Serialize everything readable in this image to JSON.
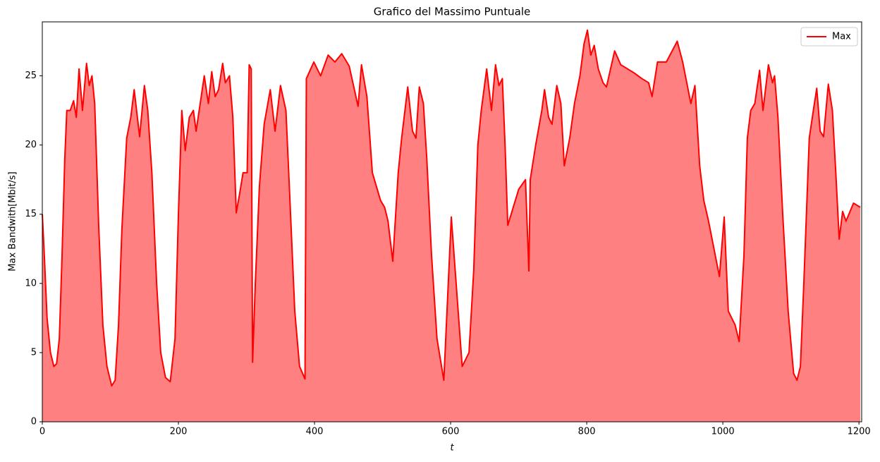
{
  "chart_data": {
    "type": "area",
    "title": "Grafico del Massimo Puntuale",
    "x_label": "t",
    "y_label": "Max Bandwith[Mbit/s]",
    "xlim": [
      0,
      1204
    ],
    "ylim": [
      0,
      28.9
    ],
    "xticks": [
      0,
      200,
      400,
      600,
      800,
      1000,
      1200
    ],
    "yticks": [
      0,
      5,
      10,
      15,
      20,
      25
    ],
    "legend": "upper right",
    "x": [
      0,
      3,
      7,
      12,
      17,
      21,
      25,
      29,
      33,
      36,
      41,
      46,
      50,
      54,
      59,
      65,
      69,
      73,
      77,
      83,
      89,
      95,
      102,
      107,
      112,
      117,
      124,
      130,
      135,
      143,
      150,
      155,
      161,
      168,
      174,
      181,
      188,
      195,
      200,
      205,
      210,
      216,
      222,
      226,
      232,
      238,
      244,
      249,
      254,
      259,
      265,
      269,
      275,
      280,
      285,
      290,
      295,
      301,
      304,
      307,
      309,
      313,
      319,
      326,
      335,
      342,
      350,
      358,
      363,
      371,
      378,
      386,
      388,
      399,
      409,
      420,
      430,
      440,
      451,
      464,
      469,
      477,
      485,
      497,
      503,
      508,
      515,
      523,
      528,
      537,
      544,
      549,
      554,
      560,
      565,
      572,
      580,
      590,
      601,
      617,
      627,
      634,
      640,
      645,
      653,
      660,
      666,
      671,
      676,
      680,
      684,
      692,
      700,
      710,
      715,
      717,
      725,
      734,
      738,
      744,
      749,
      756,
      762,
      767,
      775,
      782,
      790,
      796,
      801,
      806,
      811,
      817,
      824,
      829,
      841,
      850,
      860,
      870,
      881,
      891,
      896,
      904,
      917,
      933,
      941,
      953,
      959,
      966,
      972,
      979,
      987,
      995,
      1002,
      1008,
      1018,
      1024,
      1031,
      1036,
      1041,
      1047,
      1054,
      1059,
      1067,
      1073,
      1076,
      1081,
      1088,
      1096,
      1104,
      1109,
      1114,
      1119,
      1127,
      1133,
      1138,
      1143,
      1148,
      1155,
      1161,
      1166,
      1171,
      1176,
      1181,
      1192,
      1202
    ],
    "series": [
      {
        "name": "Max",
        "color": "#ff0000",
        "fill": "#ff8080",
        "values": [
          15,
          12,
          7.5,
          5,
          4,
          4.2,
          6,
          12,
          19,
          22.5,
          22.5,
          23.2,
          22,
          25.5,
          22.5,
          25.9,
          24.3,
          25,
          23,
          14,
          7,
          4,
          2.6,
          3,
          7,
          14,
          20.5,
          22,
          24,
          20.6,
          24.3,
          22.5,
          18,
          10,
          5,
          3.2,
          2.9,
          6,
          15,
          22.5,
          19.6,
          22,
          22.5,
          21,
          23,
          25,
          23,
          25.3,
          23.5,
          24,
          25.9,
          24.5,
          25,
          22,
          15.1,
          16.5,
          18,
          18,
          25.8,
          25.5,
          4.3,
          10,
          17,
          21.5,
          24,
          21,
          24.3,
          22.5,
          17,
          8,
          4,
          3.1,
          24.8,
          26,
          25,
          26.5,
          26,
          26.6,
          25.7,
          22.8,
          25.8,
          23.5,
          18,
          16,
          15.5,
          14.5,
          11.6,
          18,
          20.5,
          24.2,
          21,
          20.5,
          24.2,
          23,
          19,
          12,
          6,
          3,
          14.8,
          4,
          5,
          11,
          20,
          22.5,
          25.5,
          22.5,
          25.8,
          24.3,
          24.8,
          20,
          14.2,
          15.5,
          16.8,
          17.5,
          10.9,
          17.5,
          20,
          22.5,
          24,
          22,
          21.5,
          24.3,
          23,
          18.5,
          20.5,
          23,
          25,
          27.3,
          28.3,
          26.5,
          27.2,
          25.5,
          24.5,
          24.2,
          26.8,
          25.8,
          25.5,
          25.2,
          24.8,
          24.5,
          23.5,
          26,
          26,
          27.5,
          26,
          23,
          24.3,
          18.5,
          16,
          14.5,
          12.5,
          10.5,
          14.8,
          8,
          7,
          5.8,
          12,
          20.5,
          22.5,
          23,
          25.4,
          22.5,
          25.8,
          24.5,
          25,
          22,
          15,
          8,
          3.5,
          3,
          4,
          10,
          20.5,
          22.5,
          24.1,
          21,
          20.6,
          24.4,
          22.5,
          18,
          13.2,
          15.2,
          14.5,
          15.8,
          15.5
        ]
      }
    ]
  }
}
